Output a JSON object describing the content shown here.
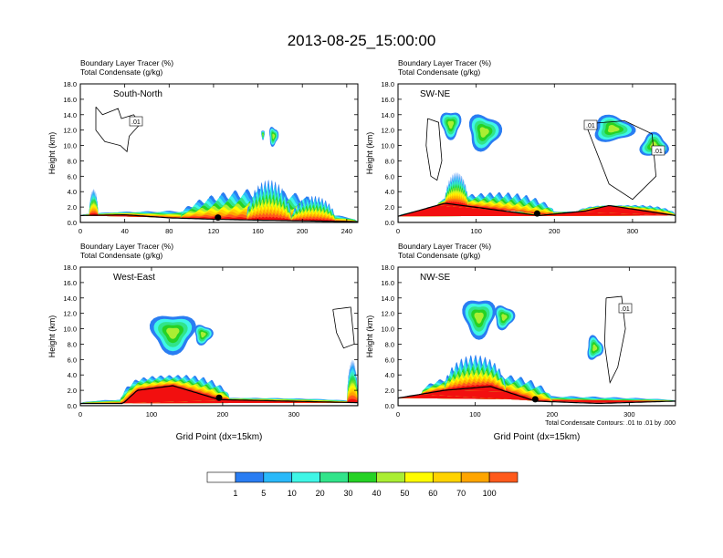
{
  "title": "2013-08-25_15:00:00",
  "colors": {
    "levels": [
      "#ffffff",
      "#2a7df2",
      "#2ab9fa",
      "#3ff6e6",
      "#31e48a",
      "#25d225",
      "#aaee33",
      "#fffc00",
      "#ffd300",
      "#ffa500",
      "#ff5a1c",
      "#f20f0f"
    ],
    "contour": "#000000",
    "terrain": "#000000"
  },
  "colorbar": {
    "labels": [
      "1",
      "5",
      "10",
      "20",
      "30",
      "40",
      "50",
      "60",
      "70",
      "100"
    ]
  },
  "chart_data": [
    {
      "type": "heatmap",
      "id": "south-north",
      "panel_label": "South-North",
      "title_lines": [
        "Boundary Layer Tracer    (%)",
        "Total Condensate    (g/kg)"
      ],
      "ylabel": "Height (km)",
      "xlabel": "",
      "xlim": [
        0,
        250
      ],
      "ylim": [
        0,
        18
      ],
      "xticks": [
        "0",
        "40",
        "80",
        "120",
        "160",
        "200",
        "240"
      ],
      "yticks": [
        "0.0",
        "2.0",
        "4.0",
        "6.0",
        "8.0",
        "10.0",
        "12.0",
        "14.0",
        "16.0",
        "18.0"
      ],
      "contour_labels": [
        ".01"
      ],
      "marker_x": 124,
      "terrain": [
        [
          0,
          0.9
        ],
        [
          40,
          1.0
        ],
        [
          80,
          0.6
        ],
        [
          124,
          0.4
        ],
        [
          160,
          0.3
        ],
        [
          250,
          0.1
        ]
      ],
      "plumes": [
        [
          0,
          250,
          1.5,
          0.5
        ],
        [
          8,
          16,
          4.0,
          0.5
        ],
        [
          90,
          230,
          3.8,
          0.7
        ],
        [
          150,
          190,
          4.8,
          0.7
        ],
        [
          190,
          230,
          3.0,
          0.7
        ]
      ],
      "clouds": [
        [
          163,
          166,
          10.8,
          12.0
        ],
        [
          170,
          178,
          10.0,
          12.4
        ]
      ],
      "outlines": [
        [
          [
            14,
            15
          ],
          [
            20,
            14
          ],
          [
            34,
            14.8
          ],
          [
            37,
            13.5
          ],
          [
            48,
            14.0
          ],
          [
            54,
            12.8
          ],
          [
            44,
            11.2
          ],
          [
            42,
            9.2
          ],
          [
            36,
            10.0
          ],
          [
            22,
            10.5
          ],
          [
            14,
            12
          ],
          [
            14,
            15
          ]
        ]
      ]
    },
    {
      "type": "heatmap",
      "id": "sw-ne",
      "panel_label": "SW-NE",
      "title_lines": [
        "Boundary Layer Tracer    (%)",
        "Total Condensate    (g/kg)"
      ],
      "ylabel": "Height (km)",
      "xlabel": "",
      "xlim": [
        0,
        355
      ],
      "ylim": [
        0,
        18
      ],
      "xticks": [
        "0",
        "100",
        "200",
        "300"
      ],
      "yticks": [
        "0.0",
        "2.0",
        "4.0",
        "6.0",
        "8.0",
        "10.0",
        "12.0",
        "14.0",
        "16.0",
        "18.0"
      ],
      "contour_labels": [
        ".01",
        ".01"
      ],
      "marker_x": 178,
      "terrain": [
        [
          0,
          0.8
        ],
        [
          60,
          2.5
        ],
        [
          120,
          1.7
        ],
        [
          180,
          0.9
        ],
        [
          240,
          1.5
        ],
        [
          270,
          2.2
        ],
        [
          355,
          0.9
        ]
      ],
      "plumes": [
        [
          0,
          355,
          1.4,
          0.5
        ],
        [
          50,
          200,
          3.6,
          0.7
        ],
        [
          230,
          355,
          2.2,
          0.6
        ],
        [
          60,
          90,
          6.0,
          0.6
        ]
      ],
      "clouds": [
        [
          55,
          80,
          11.0,
          14.5
        ],
        [
          90,
          130,
          9.5,
          14.0
        ],
        [
          250,
          300,
          10.5,
          13.8
        ],
        [
          310,
          345,
          8.5,
          11.5
        ]
      ],
      "outlines": [
        [
          [
            38,
            13.5
          ],
          [
            52,
            13.0
          ],
          [
            56,
            8.0
          ],
          [
            50,
            5.5
          ],
          [
            42,
            6.0
          ],
          [
            36,
            10
          ],
          [
            38,
            13.5
          ]
        ],
        [
          [
            240,
            12.8
          ],
          [
            290,
            13.2
          ],
          [
            325,
            11.5
          ],
          [
            330,
            6.0
          ],
          [
            300,
            3.0
          ],
          [
            270,
            5
          ],
          [
            240,
            12.8
          ]
        ]
      ]
    },
    {
      "type": "heatmap",
      "id": "west-east",
      "panel_label": "West-East",
      "title_lines": [
        "Boundary Layer Tracer    (%)",
        "Total Condensate    (g/kg)"
      ],
      "ylabel": "Height (km)",
      "xlabel": "Grid Point (dx=15km)",
      "xlim": [
        0,
        390
      ],
      "ylim": [
        0,
        18
      ],
      "xticks": [
        "0",
        "100",
        "200",
        "300"
      ],
      "yticks": [
        "0.0",
        "2.0",
        "4.0",
        "6.0",
        "8.0",
        "10.0",
        "12.0",
        "14.0",
        "16.0",
        "18.0"
      ],
      "contour_labels": [],
      "marker_x": 195,
      "terrain": [
        [
          0,
          0.3
        ],
        [
          60,
          0.3
        ],
        [
          80,
          2.0
        ],
        [
          130,
          2.6
        ],
        [
          195,
          0.8
        ],
        [
          390,
          0.4
        ]
      ],
      "plumes": [
        [
          0,
          390,
          1.0,
          0.4
        ],
        [
          55,
          210,
          3.8,
          0.6
        ],
        [
          375,
          390,
          5.5,
          0.4
        ]
      ],
      "clouds": [
        [
          100,
          160,
          7.0,
          12.0
        ],
        [
          160,
          185,
          8.0,
          10.5
        ]
      ],
      "outlines": [
        [
          [
            355,
            12.5
          ],
          [
            380,
            12.8
          ],
          [
            385,
            8
          ],
          [
            370,
            7.5
          ],
          [
            360,
            9.5
          ],
          [
            355,
            12.5
          ]
        ]
      ]
    },
    {
      "type": "heatmap",
      "id": "nw-se",
      "panel_label": "NW-SE",
      "title_lines": [
        "Boundary Layer Tracer    (%)",
        "Total Condensate    (g/kg)"
      ],
      "ylabel": "",
      "xlabel": "Grid Point (dx=15km)",
      "xlim": [
        0,
        360
      ],
      "ylim": [
        0,
        18
      ],
      "xticks": [
        "0",
        "100",
        "200",
        "300"
      ],
      "yticks": [
        "0.0",
        "2.0",
        "4.0",
        "6.0",
        "8.0",
        "10.0",
        "12.0",
        "14.0",
        "16.0",
        "18.0"
      ],
      "contour_labels": [
        ".01"
      ],
      "footnote": "Total Condensate Contours: .01 to .01 by .000",
      "marker_x": 178,
      "terrain": [
        [
          0,
          1.0
        ],
        [
          60,
          2.0
        ],
        [
          120,
          2.5
        ],
        [
          178,
          0.6
        ],
        [
          260,
          0.3
        ],
        [
          360,
          0.6
        ]
      ],
      "plumes": [
        [
          0,
          360,
          1.2,
          0.4
        ],
        [
          30,
          200,
          3.8,
          0.7
        ],
        [
          60,
          140,
          6.0,
          0.7
        ]
      ],
      "clouds": [
        [
          85,
          125,
          9.0,
          14.0
        ],
        [
          125,
          150,
          10.0,
          13.0
        ],
        [
          245,
          265,
          6.0,
          9.0
        ]
      ],
      "outlines": [
        [
          [
            270,
            14
          ],
          [
            290,
            14.2
          ],
          [
            295,
            10
          ],
          [
            285,
            5
          ],
          [
            275,
            3
          ],
          [
            268,
            8
          ],
          [
            270,
            14
          ]
        ]
      ]
    }
  ]
}
